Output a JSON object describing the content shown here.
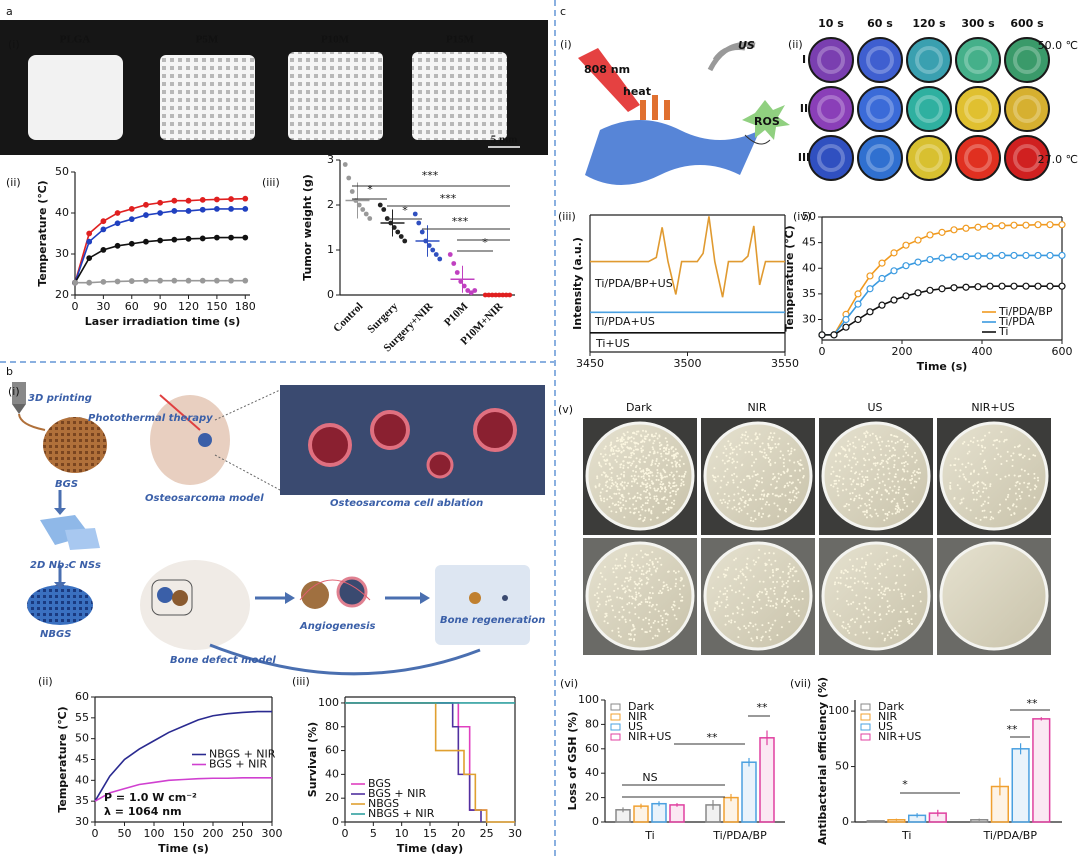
{
  "figure": {
    "panels": [
      "a",
      "b",
      "c"
    ],
    "subpanels": [
      "(i)",
      "(ii)",
      "(iii)",
      "(i)",
      "(ii)",
      "(iii)",
      "(i)",
      "(ii)",
      "(iii)",
      "(iv)",
      "(v)",
      "(vi)",
      "(vii)"
    ],
    "a_photo": {
      "samples": [
        "PLGA",
        "P5M",
        "P10M",
        "P15M"
      ],
      "scale": "5 mm"
    },
    "b_scheme": {
      "labels": [
        "3D printing",
        "Photothermal therapy",
        "BGS",
        "Osteosarcoma model",
        "Osteosarcoma cell ablation",
        "2D Nb₂C NSs",
        "NBGS",
        "Bone defect model",
        "Angiogenesis",
        "Bone regeneration"
      ]
    },
    "c_scheme": {
      "labels": [
        "808 nm",
        "heat",
        "US",
        "ROS"
      ]
    },
    "c_thermal": {
      "times": [
        "10 s",
        "60 s",
        "120 s",
        "300 s",
        "600 s"
      ],
      "rows": [
        "I",
        "II",
        "III"
      ],
      "colorbar": [
        "50.0 ℃",
        "27.0 ℃"
      ],
      "colors": [
        [
          "#7a3fb0",
          "#3f5fd0",
          "#3aa0b0",
          "#45b08a",
          "#3a9a6a"
        ],
        [
          "#8a3fb8",
          "#3b6bd8",
          "#2fb0a0",
          "#e0c030",
          "#d6b030"
        ],
        [
          "#3050c0",
          "#3070d0",
          "#d8c030",
          "#e03020",
          "#d02020"
        ]
      ]
    },
    "c_plates": {
      "conditions": [
        "Dark",
        "NIR",
        "US",
        "NIR+US"
      ]
    }
  },
  "chart_data": [
    {
      "type": "line",
      "markers": true,
      "xlabel": "Laser irradiation time (s)",
      "ylabel": "Temperature (℃)",
      "x": [
        0,
        15,
        30,
        45,
        60,
        75,
        90,
        105,
        120,
        135,
        150,
        165,
        180
      ],
      "xlim": [
        0,
        185
      ],
      "xticks": [
        0,
        30,
        60,
        90,
        120,
        150,
        180
      ],
      "ylim": [
        20,
        50
      ],
      "yticks": [
        20,
        30,
        40,
        50
      ],
      "series": [
        {
          "color": "#e02020",
          "values": [
            23,
            35,
            38,
            40,
            41,
            42,
            42.5,
            43,
            43,
            43.2,
            43.3,
            43.4,
            43.5
          ]
        },
        {
          "color": "#2040c0",
          "values": [
            23,
            33,
            36,
            37.5,
            38.5,
            39.5,
            40,
            40.5,
            40.5,
            40.8,
            41,
            41,
            41
          ]
        },
        {
          "color": "#111111",
          "values": [
            23,
            29,
            31,
            32,
            32.5,
            33,
            33.3,
            33.5,
            33.7,
            33.8,
            34,
            34,
            34
          ]
        },
        {
          "color": "#999999",
          "values": [
            23,
            23,
            23.2,
            23.3,
            23.4,
            23.5,
            23.5,
            23.5,
            23.5,
            23.5,
            23.5,
            23.5,
            23.5
          ]
        }
      ]
    },
    {
      "type": "dot",
      "ylabel": "Tumor weight (g)",
      "categories": [
        "Control",
        "Surgery",
        "Surgery+NIR",
        "P10M",
        "P10M+NIR"
      ],
      "colors": [
        "#999999",
        "#222222",
        "#3050c0",
        "#c040c0",
        "#e02020"
      ],
      "values": [
        2.1,
        1.6,
        1.2,
        0.35,
        0
      ],
      "errors": [
        0.4,
        0.3,
        0.35,
        0.3,
        0
      ],
      "points": [
        [
          2.9,
          2.6,
          2.3,
          2.1,
          2.0,
          1.9,
          1.8,
          1.7
        ],
        [
          2.0,
          1.9,
          1.7,
          1.6,
          1.5,
          1.4,
          1.3,
          1.2
        ],
        [
          1.8,
          1.6,
          1.4,
          1.2,
          1.1,
          1.0,
          0.9,
          0.8
        ],
        [
          0.9,
          0.7,
          0.5,
          0.3,
          0.2,
          0.1,
          0.05,
          0.1
        ],
        [
          0,
          0,
          0,
          0,
          0,
          0,
          0,
          0
        ]
      ],
      "ylim": [
        0,
        3
      ],
      "yticks": [
        0,
        1,
        2,
        3
      ],
      "annotations": [
        "***",
        "*",
        "***",
        "*",
        "***",
        "*"
      ]
    },
    {
      "type": "line",
      "xlabel": "Time (s)",
      "ylabel": "Temperature (℃)",
      "x": [
        0,
        25,
        50,
        75,
        100,
        125,
        150,
        175,
        200,
        225,
        250,
        275,
        300
      ],
      "xlim": [
        0,
        300
      ],
      "xticks": [
        0,
        50,
        100,
        150,
        200,
        250,
        300
      ],
      "ylim": [
        30,
        60
      ],
      "yticks": [
        30,
        35,
        40,
        45,
        50,
        55,
        60
      ],
      "legend": "center right",
      "series": [
        {
          "name": "NBGS + NIR",
          "color": "#2a2a90",
          "values": [
            35,
            41,
            45,
            47.5,
            49.5,
            51.5,
            53,
            54.5,
            55.5,
            56,
            56.3,
            56.5,
            56.5
          ]
        },
        {
          "name": "BGS + NIR",
          "color": "#d040d0",
          "values": [
            35,
            37,
            38,
            39,
            39.5,
            40,
            40.2,
            40.4,
            40.5,
            40.5,
            40.6,
            40.6,
            40.6
          ]
        }
      ],
      "annotations": [
        "P = 1.0 W cm⁻²",
        "λ = 1064 nm"
      ]
    },
    {
      "type": "line",
      "step": true,
      "xlabel": "Time (day)",
      "ylabel": "Survival (%)",
      "xlim": [
        0,
        30
      ],
      "xticks": [
        0,
        5,
        10,
        15,
        20,
        25,
        30
      ],
      "ylim": [
        0,
        105
      ],
      "yticks": [
        0,
        20,
        40,
        60,
        80,
        100
      ],
      "legend": "lower left",
      "series": [
        {
          "name": "BGS",
          "color": "#e040c0",
          "x": [
            0,
            20,
            22,
            24,
            25
          ],
          "values": [
            100,
            80,
            10,
            10,
            0
          ]
        },
        {
          "name": "BGS + NIR",
          "color": "#5030a0",
          "x": [
            0,
            19,
            20,
            22,
            24
          ],
          "values": [
            100,
            80,
            40,
            10,
            0
          ]
        },
        {
          "name": "NBGS",
          "color": "#e0a030",
          "x": [
            0,
            16,
            21,
            23,
            25,
            30
          ],
          "values": [
            100,
            60,
            40,
            10,
            0,
            0
          ]
        },
        {
          "name": "NBGS + NIR",
          "color": "#30a0a0",
          "x": [
            0,
            30
          ],
          "values": [
            100,
            100
          ]
        }
      ]
    },
    {
      "type": "line",
      "ylabel": "Intensity (a.u.)",
      "xlim": [
        3450,
        3550
      ],
      "xticks": [
        3450,
        3500,
        3550
      ],
      "ylim": [
        0,
        10
      ],
      "series": [
        {
          "color": "#e09a30",
          "x": [
            3450,
            3480,
            3484,
            3487,
            3490,
            3494,
            3497,
            3505,
            3508,
            3511,
            3514,
            3518,
            3521,
            3528,
            3531,
            3534,
            3537,
            3540,
            3550
          ],
          "values": [
            6.6,
            6.6,
            6.9,
            9.1,
            6.6,
            4.2,
            6.6,
            6.6,
            7.2,
            9.9,
            6.6,
            4.0,
            6.6,
            6.6,
            7.0,
            9.2,
            4.9,
            6.6,
            6.6
          ]
        },
        {
          "color": "#4aa0e0",
          "x": [
            3450,
            3550
          ],
          "values": [
            2.9,
            2.9
          ]
        },
        {
          "color": "#111111",
          "x": [
            3450,
            3550
          ],
          "values": [
            1.4,
            1.4
          ]
        }
      ],
      "annotations": [
        "Ti/PDA/BP+US",
        "Ti/PDA+US",
        "Ti+US"
      ]
    },
    {
      "type": "line",
      "markers": true,
      "xlabel": "Time (s)",
      "ylabel": "Temperature (℃)",
      "x": [
        0,
        30,
        60,
        90,
        120,
        150,
        180,
        210,
        240,
        270,
        300,
        330,
        360,
        390,
        420,
        450,
        480,
        510,
        540,
        570,
        600
      ],
      "xlim": [
        0,
        600
      ],
      "xticks": [
        0,
        200,
        400,
        600
      ],
      "ylim": [
        26,
        50
      ],
      "yticks": [
        30,
        35,
        40,
        45,
        50
      ],
      "legend": "lower right",
      "series": [
        {
          "name": "Ti/PDA/BP",
          "color": "#f09a20",
          "values": [
            27,
            27,
            31,
            35,
            38.5,
            41,
            43,
            44.5,
            45.5,
            46.5,
            47,
            47.5,
            47.8,
            48,
            48.2,
            48.3,
            48.4,
            48.4,
            48.5,
            48.5,
            48.5
          ]
        },
        {
          "name": "Ti/PDA",
          "color": "#3a9ae0",
          "values": [
            27,
            27,
            30,
            33,
            36,
            38,
            39.5,
            40.5,
            41.2,
            41.7,
            42,
            42.2,
            42.3,
            42.4,
            42.4,
            42.5,
            42.5,
            42.5,
            42.5,
            42.5,
            42.5
          ]
        },
        {
          "name": "Ti",
          "color": "#111111",
          "values": [
            27,
            27,
            28.5,
            30,
            31.5,
            32.8,
            33.8,
            34.6,
            35.2,
            35.7,
            36,
            36.2,
            36.3,
            36.4,
            36.5,
            36.5,
            36.5,
            36.5,
            36.5,
            36.5,
            36.5
          ]
        }
      ]
    },
    {
      "type": "bar",
      "ylabel": "Loss of GSH (%)",
      "categories": [
        "Ti",
        "Ti/PDA/BP"
      ],
      "ylim": [
        0,
        100
      ],
      "yticks": [
        0,
        20,
        40,
        60,
        80,
        100
      ],
      "legend": "upper left",
      "series": [
        {
          "name": "Dark",
          "color": "#888888",
          "values": [
            10,
            14
          ],
          "errors": [
            2,
            4
          ]
        },
        {
          "name": "NIR",
          "color": "#f0a030",
          "values": [
            13,
            20
          ],
          "errors": [
            2,
            3
          ]
        },
        {
          "name": "US",
          "color": "#4aa0e0",
          "values": [
            15,
            49
          ],
          "errors": [
            2,
            3.5
          ]
        },
        {
          "name": "NIR+US",
          "color": "#e040a0",
          "values": [
            14,
            69
          ],
          "errors": [
            1.5,
            6
          ]
        }
      ],
      "annotations": [
        "**",
        "**",
        "NS"
      ]
    },
    {
      "type": "bar",
      "ylabel": "Antibacterial efficiency (%)",
      "categories": [
        "Ti",
        "Ti/PDA/BP"
      ],
      "ylim": [
        0,
        110
      ],
      "yticks": [
        0,
        50,
        100
      ],
      "legend": "upper left",
      "series": [
        {
          "name": "Dark",
          "color": "#888888",
          "values": [
            1,
            2
          ],
          "errors": [
            0.5,
            1
          ]
        },
        {
          "name": "NIR",
          "color": "#f0a030",
          "values": [
            2,
            32
          ],
          "errors": [
            1,
            8
          ]
        },
        {
          "name": "US",
          "color": "#4aa0e0",
          "values": [
            6,
            66
          ],
          "errors": [
            2,
            5
          ]
        },
        {
          "name": "NIR+US",
          "color": "#e040a0",
          "values": [
            8,
            93
          ],
          "errors": [
            3,
            1.5
          ]
        }
      ],
      "annotations": [
        "*",
        "**",
        "**"
      ]
    }
  ]
}
